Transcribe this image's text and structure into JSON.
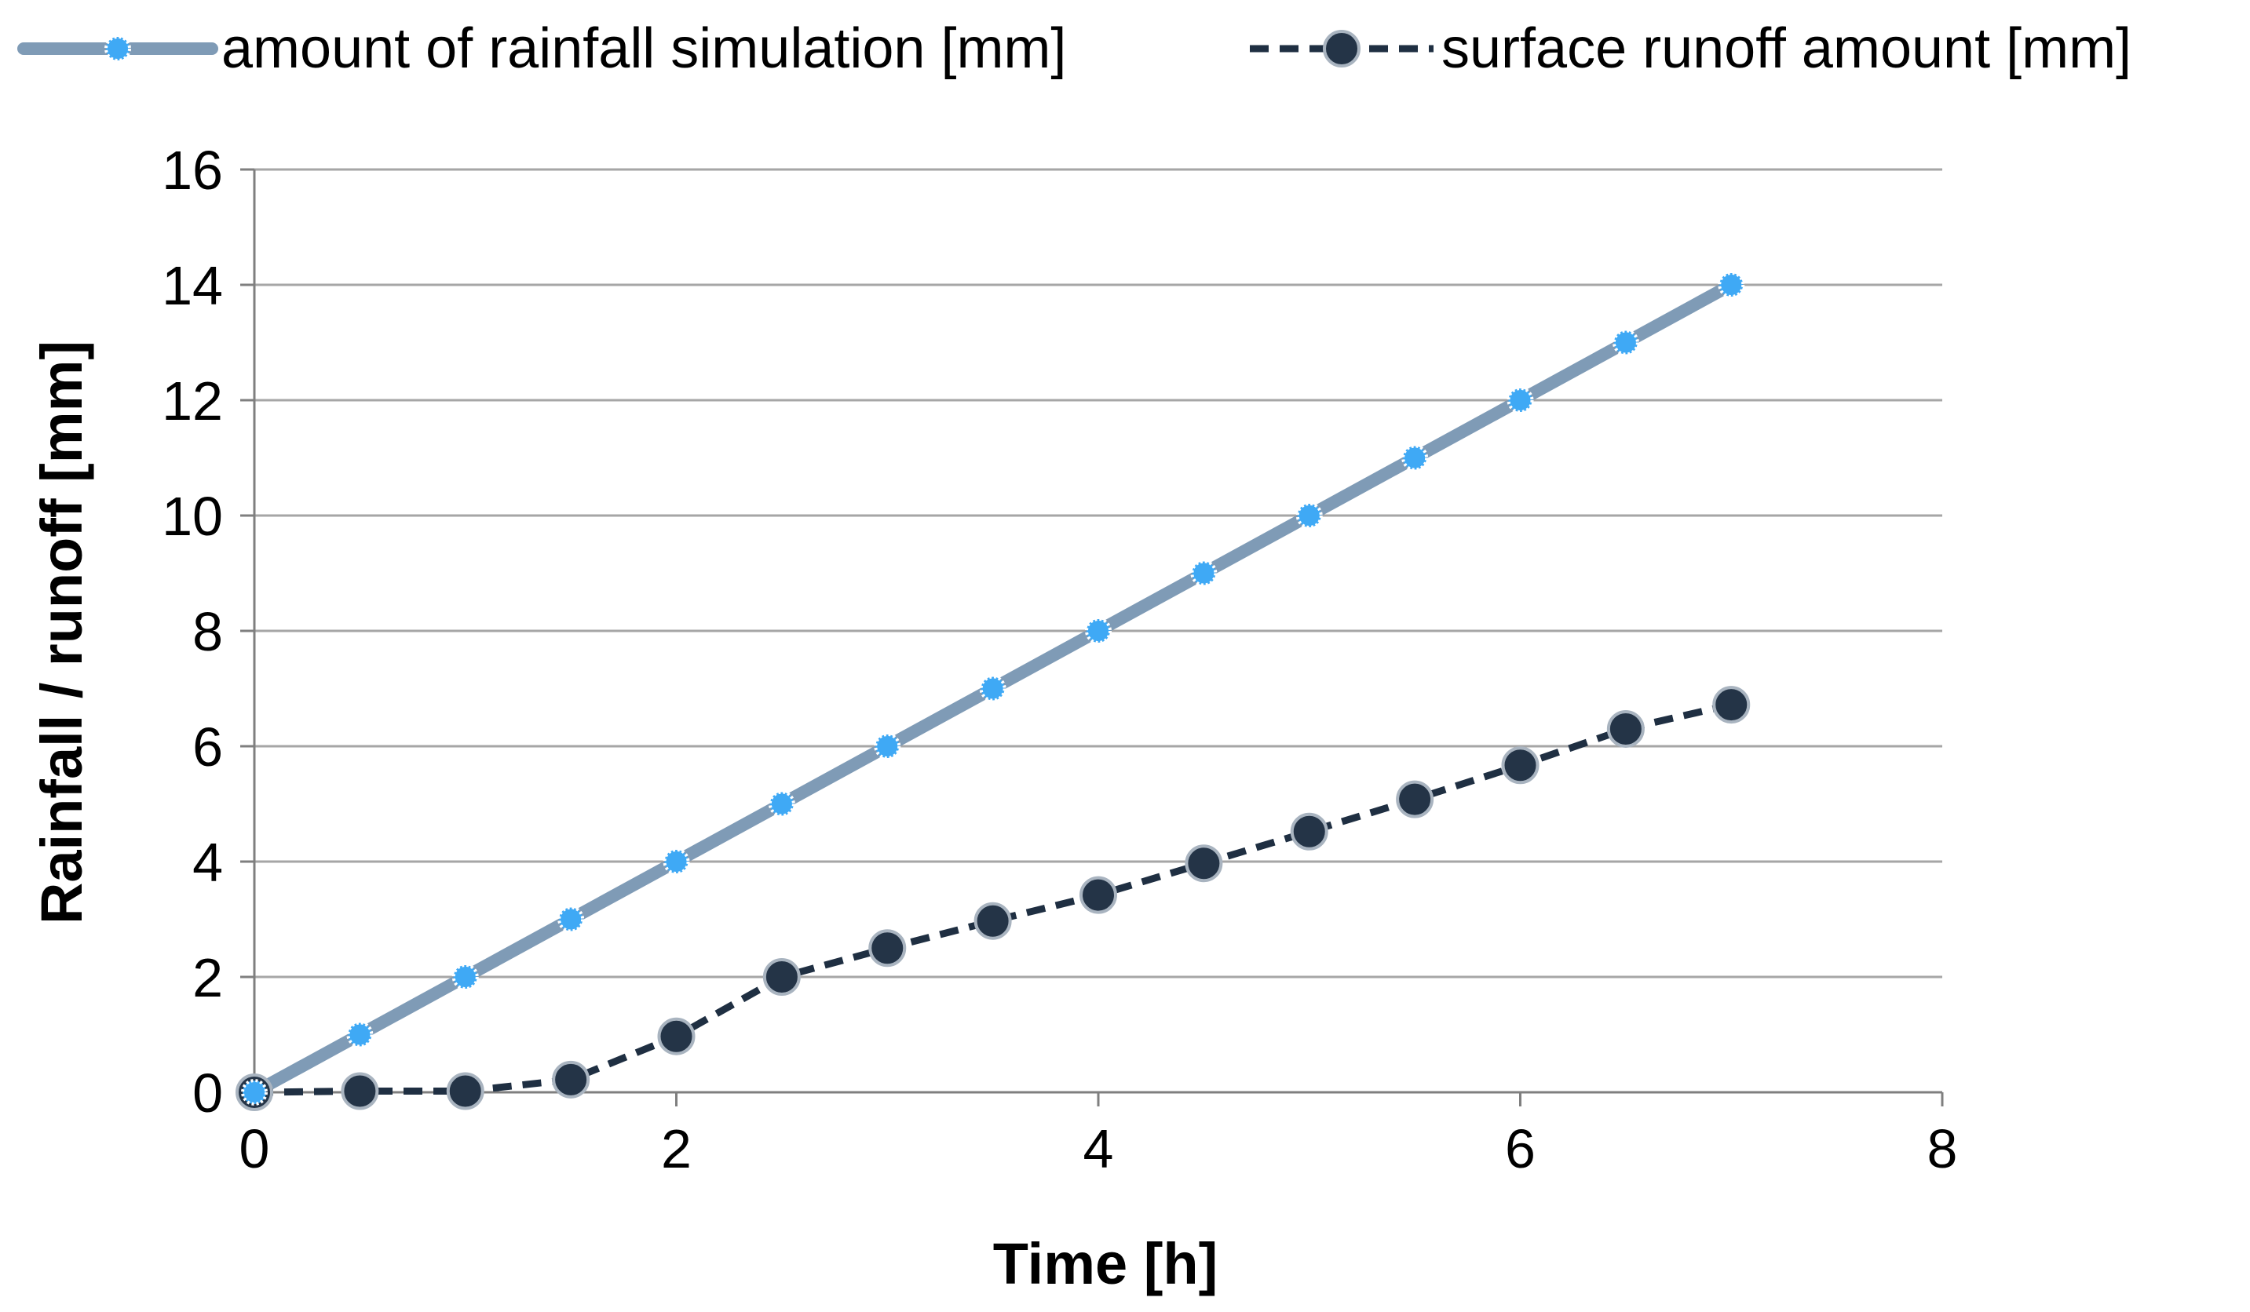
{
  "chart_data": {
    "type": "line",
    "title": "",
    "xlabel": "Time [h]",
    "ylabel": "Rainfall / runoff [mm]",
    "xlim": [
      0,
      8
    ],
    "ylim": [
      0,
      16
    ],
    "xticks": [
      0,
      2,
      4,
      6,
      8
    ],
    "yticks": [
      0,
      2,
      4,
      6,
      8,
      10,
      12,
      14,
      16
    ],
    "grid": true,
    "legend_position": "top",
    "x": [
      0,
      0.5,
      1,
      1.5,
      2,
      2.5,
      3,
      3.5,
      4,
      4.5,
      5,
      5.5,
      6,
      6.5,
      7
    ],
    "series": [
      {
        "name": "amount of rainfall simulation [mm]",
        "line_style": "solid",
        "color": "#7f9bb6",
        "marker_color": "#3fa9f5",
        "values": [
          0,
          1,
          2,
          3,
          4,
          5,
          6,
          7,
          8,
          9,
          10,
          11,
          12,
          13,
          14
        ]
      },
      {
        "name": "surface runoff amount [mm]",
        "line_style": "dashed",
        "color": "#1f2f42",
        "marker_color": "#243447",
        "values": [
          0,
          0.02,
          0.02,
          0.22,
          0.97,
          2.0,
          2.5,
          2.97,
          3.42,
          3.97,
          4.52,
          5.08,
          5.67,
          6.3,
          6.72
        ]
      }
    ]
  },
  "colors": {
    "grid": "#a6a6a6",
    "axis": "#7f7f7f"
  }
}
